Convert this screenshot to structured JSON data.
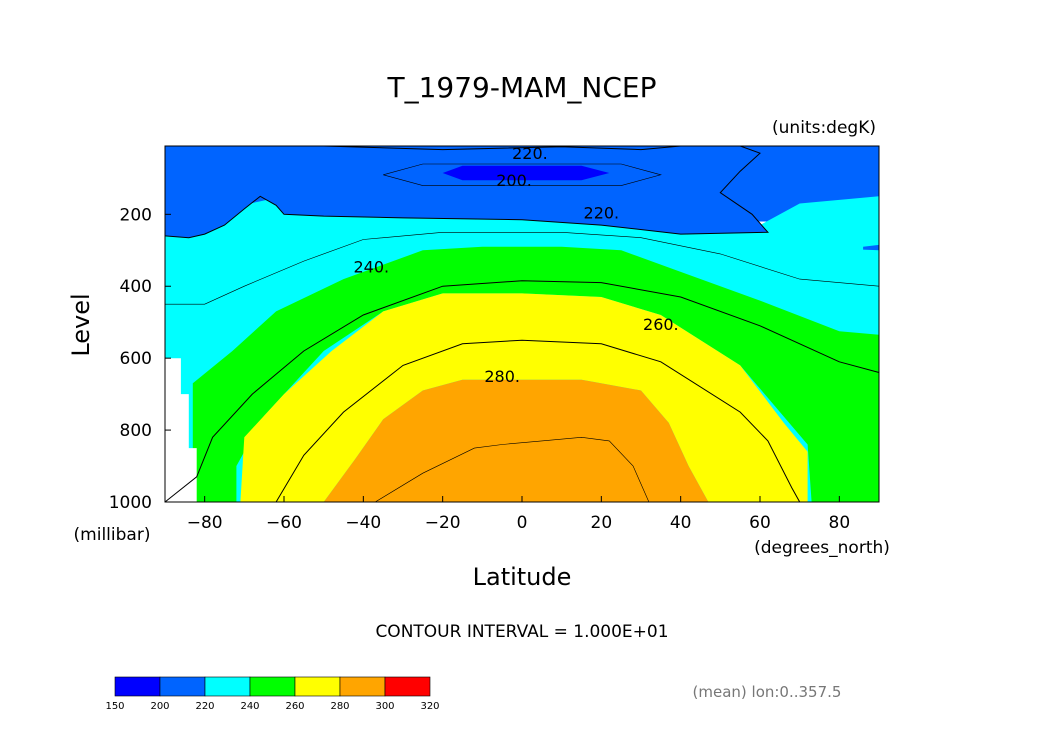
{
  "chart_data": {
    "type": "contour",
    "title": "T_1979-MAM_NCEP",
    "units_label": "(units:degK)",
    "xlabel": "Latitude",
    "xunits": "(degrees_north)",
    "ylabel": "Level",
    "yunits": "(millibar)",
    "xlim": [
      -90,
      90
    ],
    "ylim": [
      1000,
      10
    ],
    "x_ticks": [
      -80,
      -60,
      -40,
      -20,
      0,
      20,
      40,
      60,
      80
    ],
    "x_tick_labels": [
      "−80",
      "−60",
      "−40",
      "−20",
      "0",
      "20",
      "40",
      "60",
      "80"
    ],
    "y_ticks": [
      200,
      400,
      600,
      800,
      1000
    ],
    "y_tick_labels": [
      "200",
      "400",
      "600",
      "800",
      "1000"
    ],
    "contour_labels": [
      {
        "text": "220.",
        "lat": 2,
        "lev": 30
      },
      {
        "text": "200.",
        "lat": -2,
        "lev": 105
      },
      {
        "text": "220.",
        "lat": 20,
        "lev": 195
      },
      {
        "text": "240.",
        "lat": -38,
        "lev": 345
      },
      {
        "text": "260.",
        "lat": 35,
        "lev": 505
      },
      {
        "text": "280.",
        "lat": -5,
        "lev": 650
      }
    ],
    "regions": [
      {
        "band": "200-220",
        "points": [
          [
            -90,
            10
          ],
          [
            90,
            10
          ],
          [
            90,
            220
          ],
          [
            -90,
            220
          ]
        ]
      },
      {
        "band": "220-240",
        "points": [
          [
            -90,
            220
          ],
          [
            -60,
            150
          ],
          [
            -40,
            175
          ],
          [
            0,
            175
          ],
          [
            40,
            220
          ],
          [
            60,
            230
          ],
          [
            70,
            170
          ],
          [
            90,
            150
          ],
          [
            90,
            1000
          ],
          [
            -90,
            1000
          ]
        ]
      },
      {
        "band": "200-220",
        "points": [
          [
            -90,
            10
          ],
          [
            -50,
            10
          ],
          [
            -20,
            20
          ],
          [
            10,
            12
          ],
          [
            30,
            20
          ],
          [
            40,
            10
          ],
          [
            55,
            10
          ],
          [
            60,
            30
          ],
          [
            55,
            80
          ],
          [
            50,
            140
          ],
          [
            58,
            200
          ],
          [
            62,
            250
          ],
          [
            40,
            255
          ],
          [
            20,
            230
          ],
          [
            0,
            215
          ],
          [
            -30,
            210
          ],
          [
            -50,
            205
          ],
          [
            -60,
            200
          ],
          [
            -62,
            175
          ],
          [
            -66,
            150
          ],
          [
            -70,
            185
          ],
          [
            -75,
            230
          ],
          [
            -80,
            255
          ],
          [
            -84,
            265
          ],
          [
            -90,
            260
          ]
        ]
      },
      {
        "band": "200-220",
        "points": [
          [
            86,
            290
          ],
          [
            90,
            285
          ],
          [
            90,
            300
          ],
          [
            86,
            298
          ]
        ]
      },
      {
        "band": "lt200",
        "points": [
          [
            -20,
            85
          ],
          [
            -15,
            65
          ],
          [
            15,
            65
          ],
          [
            22,
            85
          ],
          [
            15,
            105
          ],
          [
            -15,
            105
          ]
        ]
      },
      {
        "band": "240-260",
        "points": [
          [
            -83,
            1000
          ],
          [
            -83,
            670
          ],
          [
            -73,
            580
          ],
          [
            -62,
            470
          ],
          [
            -45,
            380
          ],
          [
            -25,
            300
          ],
          [
            -10,
            290
          ],
          [
            10,
            290
          ],
          [
            25,
            300
          ],
          [
            40,
            360
          ],
          [
            60,
            440
          ],
          [
            80,
            525
          ],
          [
            90,
            535
          ],
          [
            90,
            1000
          ],
          [
            73,
            1000
          ],
          [
            72,
            840
          ],
          [
            55,
            620
          ],
          [
            35,
            480
          ],
          [
            20,
            430
          ],
          [
            0,
            420
          ],
          [
            -20,
            420
          ],
          [
            -35,
            470
          ],
          [
            -50,
            580
          ],
          [
            -65,
            760
          ],
          [
            -72,
            900
          ],
          [
            -72,
            1000
          ]
        ]
      },
      {
        "band": "260-280",
        "points": [
          [
            -71,
            1000
          ],
          [
            -70,
            820
          ],
          [
            -60,
            700
          ],
          [
            -48,
            580
          ],
          [
            -35,
            470
          ],
          [
            -20,
            420
          ],
          [
            0,
            420
          ],
          [
            20,
            430
          ],
          [
            35,
            480
          ],
          [
            55,
            620
          ],
          [
            66,
            780
          ],
          [
            72,
            860
          ],
          [
            72,
            1000
          ],
          [
            47,
            1000
          ],
          [
            42,
            900
          ],
          [
            37,
            780
          ],
          [
            30,
            690
          ],
          [
            15,
            660
          ],
          [
            -15,
            660
          ],
          [
            -25,
            690
          ],
          [
            -35,
            770
          ],
          [
            -42,
            880
          ],
          [
            -48,
            970
          ],
          [
            -50,
            1000
          ]
        ]
      },
      {
        "band": "280-300",
        "points": [
          [
            -50,
            1000
          ],
          [
            -48,
            970
          ],
          [
            -42,
            880
          ],
          [
            -35,
            770
          ],
          [
            -25,
            690
          ],
          [
            -15,
            660
          ],
          [
            15,
            660
          ],
          [
            30,
            690
          ],
          [
            37,
            780
          ],
          [
            42,
            900
          ],
          [
            47,
            1000
          ]
        ]
      },
      {
        "band": "missing",
        "points": [
          [
            -90,
            600
          ],
          [
            -86,
            600
          ],
          [
            -86,
            700
          ],
          [
            -84,
            700
          ],
          [
            -84,
            850
          ],
          [
            -82,
            850
          ],
          [
            -82,
            1000
          ],
          [
            -90,
            1000
          ]
        ]
      }
    ],
    "contour_lines": [
      [
        [
          -90,
          10
        ],
        [
          -50,
          10
        ],
        [
          -20,
          20
        ],
        [
          10,
          12
        ],
        [
          30,
          20
        ],
        [
          40,
          10
        ],
        [
          55,
          10
        ],
        [
          60,
          30
        ],
        [
          55,
          80
        ],
        [
          50,
          140
        ],
        [
          58,
          200
        ],
        [
          62,
          250
        ],
        [
          40,
          255
        ],
        [
          20,
          230
        ],
        [
          0,
          215
        ],
        [
          -30,
          210
        ],
        [
          -50,
          205
        ],
        [
          -60,
          200
        ],
        [
          -62,
          175
        ],
        [
          -66,
          150
        ],
        [
          -70,
          185
        ],
        [
          -75,
          230
        ],
        [
          -80,
          255
        ],
        [
          -84,
          265
        ],
        [
          -90,
          260
        ]
      ],
      [
        [
          -35,
          90
        ],
        [
          -25,
          60
        ],
        [
          25,
          60
        ],
        [
          35,
          90
        ],
        [
          25,
          120
        ],
        [
          -25,
          120
        ],
        [
          -35,
          90
        ]
      ],
      [
        [
          -90,
          450
        ],
        [
          -80,
          450
        ],
        [
          -70,
          400
        ],
        [
          -55,
          330
        ],
        [
          -40,
          270
        ],
        [
          -20,
          250
        ],
        [
          10,
          250
        ],
        [
          30,
          265
        ],
        [
          50,
          310
        ],
        [
          70,
          380
        ],
        [
          90,
          400
        ]
      ],
      [
        [
          -90,
          1000
        ],
        [
          -82,
          930
        ],
        [
          -78,
          820
        ],
        [
          -68,
          700
        ],
        [
          -55,
          580
        ],
        [
          -40,
          480
        ],
        [
          -20,
          400
        ],
        [
          0,
          385
        ],
        [
          20,
          390
        ],
        [
          40,
          430
        ],
        [
          60,
          510
        ],
        [
          80,
          610
        ],
        [
          90,
          640
        ]
      ],
      [
        [
          -62,
          1000
        ],
        [
          -55,
          870
        ],
        [
          -45,
          750
        ],
        [
          -30,
          620
        ],
        [
          -15,
          560
        ],
        [
          0,
          550
        ],
        [
          20,
          560
        ],
        [
          35,
          610
        ],
        [
          55,
          750
        ],
        [
          62,
          830
        ],
        [
          68,
          960
        ],
        [
          70,
          1000
        ]
      ],
      [
        [
          -37,
          1000
        ],
        [
          -25,
          920
        ],
        [
          -12,
          850
        ],
        [
          -5,
          840
        ],
        [
          5,
          830
        ],
        [
          15,
          820
        ],
        [
          22,
          830
        ],
        [
          28,
          900
        ],
        [
          32,
          1000
        ]
      ]
    ],
    "colorbar": {
      "levels": [
        "150",
        "200",
        "220",
        "240",
        "260",
        "280",
        "300",
        "320"
      ],
      "colors": [
        "#0000ff",
        "#0064ff",
        "#00ffff",
        "#00ff00",
        "#ffff00",
        "#ffa500",
        "#ff0000"
      ]
    },
    "footer_note": "CONTOUR INTERVAL = 1.000E+01",
    "mean_note": "(mean) lon:0..357.5"
  },
  "band_colors": {
    "lt200": "#0000ff",
    "200-220": "#0064ff",
    "220-240": "#00ffff",
    "240-260": "#00ff00",
    "260-280": "#ffff00",
    "280-300": "#ffa500",
    "missing": "#ffffff"
  }
}
